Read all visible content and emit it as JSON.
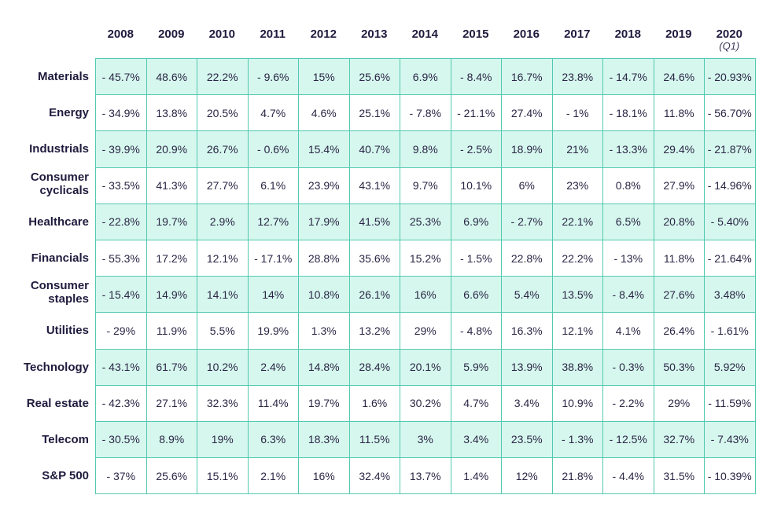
{
  "chart_data": {
    "type": "table",
    "columns": [
      {
        "year": "2008",
        "note": ""
      },
      {
        "year": "2009",
        "note": ""
      },
      {
        "year": "2010",
        "note": ""
      },
      {
        "year": "2011",
        "note": ""
      },
      {
        "year": "2012",
        "note": ""
      },
      {
        "year": "2013",
        "note": ""
      },
      {
        "year": "2014",
        "note": ""
      },
      {
        "year": "2015",
        "note": ""
      },
      {
        "year": "2016",
        "note": ""
      },
      {
        "year": "2017",
        "note": ""
      },
      {
        "year": "2018",
        "note": ""
      },
      {
        "year": "2019",
        "note": ""
      },
      {
        "year": "2020",
        "note": "(Q1)"
      }
    ],
    "rows": [
      {
        "lines": [
          "Materials"
        ],
        "values": [
          "- 45.7%",
          "48.6%",
          "22.2%",
          "- 9.6%",
          "15%",
          "25.6%",
          "6.9%",
          "- 8.4%",
          "16.7%",
          "23.8%",
          "- 14.7%",
          "24.6%",
          "- 20.93%"
        ]
      },
      {
        "lines": [
          "Energy"
        ],
        "values": [
          "- 34.9%",
          "13.8%",
          "20.5%",
          "4.7%",
          "4.6%",
          "25.1%",
          "- 7.8%",
          "- 21.1%",
          "27.4%",
          "- 1%",
          "- 18.1%",
          "11.8%",
          "- 56.70%"
        ]
      },
      {
        "lines": [
          "Industrials"
        ],
        "values": [
          "- 39.9%",
          "20.9%",
          "26.7%",
          "- 0.6%",
          "15.4%",
          "40.7%",
          "9.8%",
          "- 2.5%",
          "18.9%",
          "21%",
          "- 13.3%",
          "29.4%",
          "- 21.87%"
        ]
      },
      {
        "lines": [
          "Consumer",
          "cyclicals"
        ],
        "values": [
          "- 33.5%",
          "41.3%",
          "27.7%",
          "6.1%",
          "23.9%",
          "43.1%",
          "9.7%",
          "10.1%",
          "6%",
          "23%",
          "0.8%",
          "27.9%",
          "- 14.96%"
        ]
      },
      {
        "lines": [
          "Healthcare"
        ],
        "values": [
          "- 22.8%",
          "19.7%",
          "2.9%",
          "12.7%",
          "17.9%",
          "41.5%",
          "25.3%",
          "6.9%",
          "- 2.7%",
          "22.1%",
          "6.5%",
          "20.8%",
          "- 5.40%"
        ]
      },
      {
        "lines": [
          "Financials"
        ],
        "values": [
          "- 55.3%",
          "17.2%",
          "12.1%",
          "- 17.1%",
          "28.8%",
          "35.6%",
          "15.2%",
          "- 1.5%",
          "22.8%",
          "22.2%",
          "- 13%",
          "11.8%",
          "- 21.64%"
        ]
      },
      {
        "lines": [
          "Consumer",
          "staples"
        ],
        "values": [
          "- 15.4%",
          "14.9%",
          "14.1%",
          "14%",
          "10.8%",
          "26.1%",
          "16%",
          "6.6%",
          "5.4%",
          "13.5%",
          "- 8.4%",
          "27.6%",
          "3.48%"
        ]
      },
      {
        "lines": [
          "Utilities"
        ],
        "values": [
          "- 29%",
          "11.9%",
          "5.5%",
          "19.9%",
          "1.3%",
          "13.2%",
          "29%",
          "- 4.8%",
          "16.3%",
          "12.1%",
          "4.1%",
          "26.4%",
          "- 1.61%"
        ]
      },
      {
        "lines": [
          "Technology"
        ],
        "values": [
          "- 43.1%",
          "61.7%",
          "10.2%",
          "2.4%",
          "14.8%",
          "28.4%",
          "20.1%",
          "5.9%",
          "13.9%",
          "38.8%",
          "- 0.3%",
          "50.3%",
          "5.92%"
        ]
      },
      {
        "lines": [
          "Real estate"
        ],
        "values": [
          "- 42.3%",
          "27.1%",
          "32.3%",
          "11.4%",
          "19.7%",
          "1.6%",
          "30.2%",
          "4.7%",
          "3.4%",
          "10.9%",
          "- 2.2%",
          "29%",
          "- 11.59%"
        ]
      },
      {
        "lines": [
          "Telecom"
        ],
        "values": [
          "- 30.5%",
          "8.9%",
          "19%",
          "6.3%",
          "18.3%",
          "11.5%",
          "3%",
          "3.4%",
          "23.5%",
          "- 1.3%",
          "- 12.5%",
          "32.7%",
          "- 7.43%"
        ]
      },
      {
        "lines": [
          "S&P 500"
        ],
        "values": [
          "- 37%",
          "25.6%",
          "15.1%",
          "2.1%",
          "16%",
          "32.4%",
          "13.7%",
          "1.4%",
          "12%",
          "21.8%",
          "- 4.4%",
          "31.5%",
          "- 10.39%"
        ]
      }
    ]
  },
  "colors": {
    "shade": "#d6f7ee",
    "border": "#52c9b0",
    "text": "#1f1b3d"
  }
}
